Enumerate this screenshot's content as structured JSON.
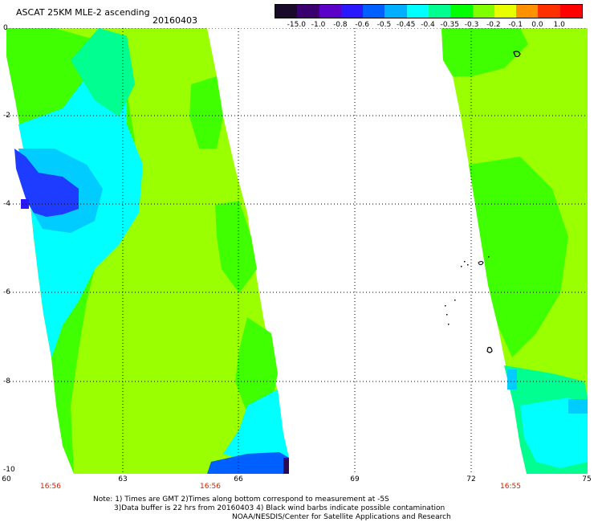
{
  "header": {
    "title": "ASCAT 25KM MLE-2 ascending",
    "date": "20160403"
  },
  "colorbar": {
    "labels": [
      "-15.0",
      "-1.0",
      "-0.8",
      "-0.6",
      "-0.5",
      "-0.45",
      "-0.4",
      "-0.35",
      "-0.3",
      "-0.2",
      "-0.1",
      "0.0",
      "1.0"
    ],
    "colors": [
      "#1a0a2a",
      "#3a0070",
      "#5a00c8",
      "#2a18ff",
      "#0060ff",
      "#00b0ff",
      "#00ffff",
      "#00ff90",
      "#00ff00",
      "#80ff00",
      "#e8ff00",
      "#ff9000",
      "#ff3000",
      "#ff0000"
    ]
  },
  "axes": {
    "lat_labels": [
      "0",
      "-2",
      "-4",
      "-6",
      "-8",
      "-10"
    ],
    "lon_labels": [
      "60",
      "63",
      "66",
      "69",
      "72",
      "75"
    ],
    "time_labels": [
      "16:56",
      "16:56",
      "16:55"
    ]
  },
  "notes": {
    "line1": "Note: 1) Times are GMT 2)Times along bottom correspond to measurement at -5S",
    "line2": "3)Data buffer is 22 hrs from 20160403 4) Black wind barbs indicate possible contamination",
    "line3": "NOAA/NESDIS/Center for Satellite Applications and Research"
  },
  "map_colors": {
    "lime": "#9aff00",
    "green": "#40ff00",
    "aqua_green": "#00ff90",
    "cyan": "#00ffff",
    "light_blue": "#00ccff",
    "blue": "#1e3cff",
    "indigo": "#3a00b0",
    "dark_purple": "#2a0a50"
  }
}
